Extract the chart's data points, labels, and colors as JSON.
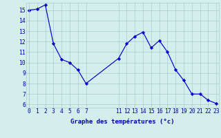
{
  "hours": [
    0,
    1,
    2,
    3,
    4,
    5,
    6,
    7,
    11,
    12,
    13,
    14,
    15,
    16,
    17,
    18,
    19,
    20,
    21,
    22,
    23
  ],
  "temps": [
    15.0,
    15.1,
    15.5,
    11.8,
    10.3,
    10.0,
    9.3,
    8.0,
    10.4,
    11.8,
    12.5,
    12.9,
    11.4,
    12.1,
    11.0,
    9.3,
    8.3,
    7.0,
    7.0,
    6.4,
    6.1
  ],
  "xlim": [
    -0.3,
    23.3
  ],
  "ylim": [
    5.7,
    15.7
  ],
  "xticks": [
    0,
    1,
    2,
    3,
    4,
    5,
    6,
    7,
    11,
    12,
    13,
    14,
    15,
    16,
    17,
    18,
    19,
    20,
    21,
    22,
    23
  ],
  "yticks": [
    6,
    7,
    8,
    9,
    10,
    11,
    12,
    13,
    14,
    15
  ],
  "xlabel": "Graphe des températures (°c)",
  "line_color": "#0000cc",
  "marker_color": "#0000cc",
  "bg_color": "#d4eeee",
  "grid_color": "#aacccc",
  "axis_label_color": "#0000aa",
  "tick_label_color": "#0000aa",
  "xlabel_fontsize": 6.5,
  "tick_fontsize": 5.8
}
